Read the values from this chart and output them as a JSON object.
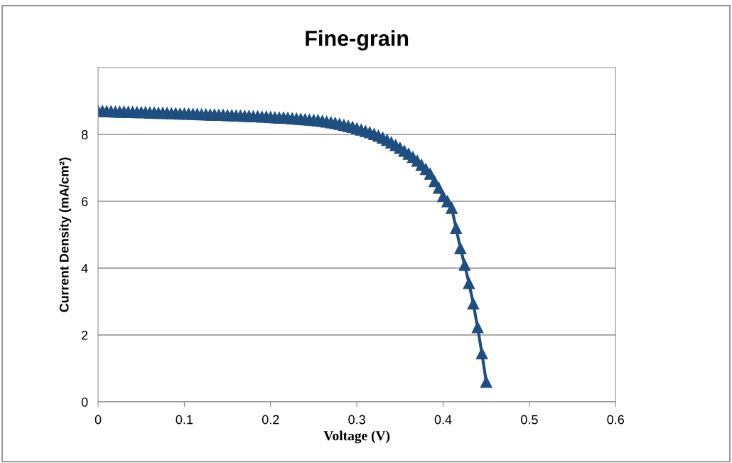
{
  "chart_data": {
    "type": "line",
    "title": "Fine-grain",
    "xlabel": "Voltage (V)",
    "ylabel": "Current Density (mA/cm²)",
    "x": [
      0,
      0.005,
      0.01,
      0.015,
      0.02,
      0.025,
      0.03,
      0.035,
      0.04,
      0.045,
      0.05,
      0.055,
      0.06,
      0.065,
      0.07,
      0.075,
      0.08,
      0.085,
      0.09,
      0.095,
      0.1,
      0.105,
      0.11,
      0.115,
      0.12,
      0.125,
      0.13,
      0.135,
      0.14,
      0.145,
      0.15,
      0.155,
      0.16,
      0.165,
      0.17,
      0.175,
      0.18,
      0.185,
      0.19,
      0.195,
      0.2,
      0.205,
      0.21,
      0.215,
      0.22,
      0.225,
      0.23,
      0.235,
      0.24,
      0.245,
      0.25,
      0.255,
      0.26,
      0.265,
      0.27,
      0.275,
      0.28,
      0.285,
      0.29,
      0.295,
      0.3,
      0.305,
      0.31,
      0.315,
      0.32,
      0.325,
      0.33,
      0.335,
      0.34,
      0.345,
      0.35,
      0.355,
      0.36,
      0.365,
      0.37,
      0.375,
      0.38,
      0.385,
      0.39,
      0.395,
      0.4,
      0.405,
      0.41,
      0.415,
      0.42,
      0.425,
      0.43,
      0.435,
      0.44,
      0.445,
      0.45
    ],
    "series": [
      {
        "color": "#1f4e80",
        "values": [
          8.7,
          8.7,
          8.69,
          8.69,
          8.68,
          8.68,
          8.68,
          8.67,
          8.67,
          8.66,
          8.66,
          8.66,
          8.65,
          8.65,
          8.64,
          8.64,
          8.64,
          8.63,
          8.63,
          8.62,
          8.62,
          8.62,
          8.61,
          8.61,
          8.6,
          8.6,
          8.59,
          8.59,
          8.58,
          8.58,
          8.57,
          8.57,
          8.56,
          8.56,
          8.55,
          8.55,
          8.54,
          8.54,
          8.53,
          8.53,
          8.52,
          8.51,
          8.5,
          8.5,
          8.49,
          8.48,
          8.47,
          8.46,
          8.45,
          8.44,
          8.43,
          8.42,
          8.4,
          8.38,
          8.36,
          8.34,
          8.31,
          8.28,
          8.25,
          8.22,
          8.18,
          8.14,
          8.1,
          8.06,
          8.01,
          7.96,
          7.9,
          7.83,
          7.76,
          7.68,
          7.6,
          7.51,
          7.42,
          7.32,
          7.21,
          7.09,
          6.96,
          6.82,
          6.6,
          6.4,
          6.15,
          6.0,
          5.8,
          5.2,
          4.6,
          4.1,
          3.55,
          2.94,
          2.23,
          1.45,
          0.6
        ]
      }
    ],
    "xlim": [
      0,
      0.6
    ],
    "xticks": [
      0,
      0.1,
      0.2,
      0.3,
      0.4,
      0.5,
      0.6
    ],
    "ylim": [
      0,
      10
    ],
    "yticks": [
      0,
      2,
      4,
      6,
      8
    ],
    "grid": "y",
    "legend": false,
    "marker": "triangle",
    "line_style": "solid"
  }
}
